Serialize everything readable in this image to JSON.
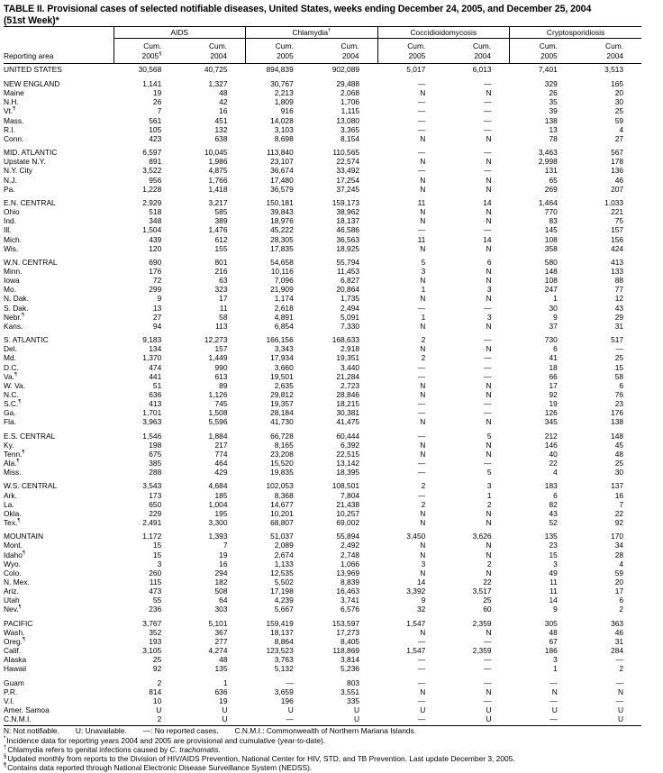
{
  "title": "TABLE II. Provisional cases of selected notifiable diseases, United States, weeks ending December 24, 2005, and December 25, 2004",
  "subtitle": "(51st Week)*",
  "area_header": "Reporting area",
  "diseases": [
    {
      "name": "AIDS",
      "note": ""
    },
    {
      "name": "Chlamydia",
      "note": "†"
    },
    {
      "name": "Coccidioidomycosis",
      "note": ""
    },
    {
      "name": "Cryptosporidiosis",
      "note": ""
    }
  ],
  "subheaders": [
    {
      "line1": "Cum.",
      "line2": "2005",
      "note": "§"
    },
    {
      "line1": "Cum.",
      "line2": "2004",
      "note": ""
    },
    {
      "line1": "Cum.",
      "line2": "2005",
      "note": ""
    },
    {
      "line1": "Cum.",
      "line2": "2004",
      "note": ""
    },
    {
      "line1": "Cum.",
      "line2": "2005",
      "note": ""
    },
    {
      "line1": "Cum.",
      "line2": "2004",
      "note": ""
    },
    {
      "line1": "Cum.",
      "line2": "2005",
      "note": ""
    },
    {
      "line1": "Cum.",
      "line2": "2004",
      "note": ""
    }
  ],
  "groups": [
    [
      [
        "UNITED STATES",
        "",
        "30,568",
        "40,725",
        "894,839",
        "902,089",
        "5,017",
        "6,013",
        "7,401",
        "3,513"
      ]
    ],
    [
      [
        "NEW ENGLAND",
        "",
        "1,141",
        "1,327",
        "30,767",
        "29,488",
        "—",
        "—",
        "329",
        "165"
      ],
      [
        "Maine",
        "",
        "19",
        "48",
        "2,213",
        "2,068",
        "N",
        "N",
        "26",
        "20"
      ],
      [
        "N.H.",
        "",
        "26",
        "42",
        "1,809",
        "1,706",
        "—",
        "—",
        "35",
        "30"
      ],
      [
        "Vt.",
        "¶",
        "7",
        "16",
        "916",
        "1,115",
        "—",
        "—",
        "39",
        "25"
      ],
      [
        "Mass.",
        "",
        "561",
        "451",
        "14,028",
        "13,080",
        "—",
        "—",
        "138",
        "59"
      ],
      [
        "R.I.",
        "",
        "105",
        "132",
        "3,103",
        "3,365",
        "—",
        "—",
        "13",
        "4"
      ],
      [
        "Conn.",
        "",
        "423",
        "638",
        "8,698",
        "8,154",
        "N",
        "N",
        "78",
        "27"
      ]
    ],
    [
      [
        "MID. ATLANTIC",
        "",
        "6,597",
        "10,045",
        "113,840",
        "110,565",
        "—",
        "—",
        "3,463",
        "567"
      ],
      [
        "Upstate N.Y.",
        "",
        "891",
        "1,986",
        "23,107",
        "22,574",
        "N",
        "N",
        "2,998",
        "178"
      ],
      [
        "N.Y. City",
        "",
        "3,522",
        "4,875",
        "36,674",
        "33,492",
        "—",
        "—",
        "131",
        "136"
      ],
      [
        "N.J.",
        "",
        "956",
        "1,766",
        "17,480",
        "17,254",
        "N",
        "N",
        "65",
        "46"
      ],
      [
        "Pa.",
        "",
        "1,228",
        "1,418",
        "36,579",
        "37,245",
        "N",
        "N",
        "269",
        "207"
      ]
    ],
    [
      [
        "E.N. CENTRAL",
        "",
        "2,929",
        "3,217",
        "150,181",
        "159,173",
        "11",
        "14",
        "1,464",
        "1,033"
      ],
      [
        "Ohio",
        "",
        "518",
        "585",
        "39,843",
        "38,962",
        "N",
        "N",
        "770",
        "221"
      ],
      [
        "Ind.",
        "",
        "348",
        "389",
        "18,976",
        "18,137",
        "N",
        "N",
        "83",
        "75"
      ],
      [
        "Ill.",
        "",
        "1,504",
        "1,476",
        "45,222",
        "46,586",
        "—",
        "—",
        "145",
        "157"
      ],
      [
        "Mich.",
        "",
        "439",
        "612",
        "28,305",
        "36,563",
        "11",
        "14",
        "108",
        "156"
      ],
      [
        "Wis.",
        "",
        "120",
        "155",
        "17,835",
        "18,925",
        "N",
        "N",
        "358",
        "424"
      ]
    ],
    [
      [
        "W.N. CENTRAL",
        "",
        "690",
        "801",
        "54,658",
        "55,794",
        "5",
        "6",
        "580",
        "413"
      ],
      [
        "Minn.",
        "",
        "176",
        "216",
        "10,116",
        "11,453",
        "3",
        "N",
        "148",
        "133"
      ],
      [
        "Iowa",
        "",
        "72",
        "63",
        "7,096",
        "6,827",
        "N",
        "N",
        "108",
        "88"
      ],
      [
        "Mo.",
        "",
        "299",
        "323",
        "21,909",
        "20,864",
        "1",
        "3",
        "247",
        "77"
      ],
      [
        "N. Dak.",
        "",
        "9",
        "17",
        "1,174",
        "1,735",
        "N",
        "N",
        "1",
        "12"
      ],
      [
        "S. Dak.",
        "",
        "13",
        "11",
        "2,618",
        "2,494",
        "—",
        "—",
        "30",
        "43"
      ],
      [
        "Nebr.",
        "¶",
        "27",
        "58",
        "4,891",
        "5,091",
        "1",
        "3",
        "9",
        "29"
      ],
      [
        "Kans.",
        "",
        "94",
        "113",
        "6,854",
        "7,330",
        "N",
        "N",
        "37",
        "31"
      ]
    ],
    [
      [
        "S. ATLANTIC",
        "",
        "9,183",
        "12,273",
        "166,156",
        "168,633",
        "2",
        "—",
        "730",
        "517"
      ],
      [
        "Del.",
        "",
        "134",
        "157",
        "3,343",
        "2,918",
        "N",
        "N",
        "6",
        "—"
      ],
      [
        "Md.",
        "",
        "1,370",
        "1,449",
        "17,934",
        "19,351",
        "2",
        "—",
        "41",
        "25"
      ],
      [
        "D.C.",
        "",
        "474",
        "990",
        "3,660",
        "3,440",
        "—",
        "—",
        "18",
        "15"
      ],
      [
        "Va.",
        "¶",
        "441",
        "613",
        "19,501",
        "21,284",
        "—",
        "—",
        "66",
        "58"
      ],
      [
        "W. Va.",
        "",
        "51",
        "89",
        "2,635",
        "2,723",
        "N",
        "N",
        "17",
        "6"
      ],
      [
        "N.C.",
        "",
        "636",
        "1,126",
        "29,812",
        "28,846",
        "N",
        "N",
        "92",
        "76"
      ],
      [
        "S.C.",
        "¶",
        "413",
        "745",
        "19,357",
        "18,215",
        "—",
        "—",
        "19",
        "23"
      ],
      [
        "Ga.",
        "",
        "1,701",
        "1,508",
        "28,184",
        "30,381",
        "—",
        "—",
        "126",
        "176"
      ],
      [
        "Fla.",
        "",
        "3,963",
        "5,596",
        "41,730",
        "41,475",
        "N",
        "N",
        "345",
        "138"
      ]
    ],
    [
      [
        "E.S. CENTRAL",
        "",
        "1,546",
        "1,884",
        "66,728",
        "60,444",
        "—",
        "5",
        "212",
        "148"
      ],
      [
        "Ky.",
        "",
        "198",
        "217",
        "8,165",
        "6,392",
        "N",
        "N",
        "146",
        "45"
      ],
      [
        "Tenn.",
        "¶",
        "675",
        "774",
        "23,208",
        "22,515",
        "N",
        "N",
        "40",
        "48"
      ],
      [
        "Ala.",
        "¶",
        "385",
        "464",
        "15,520",
        "13,142",
        "—",
        "—",
        "22",
        "25"
      ],
      [
        "Miss.",
        "",
        "288",
        "429",
        "19,835",
        "18,395",
        "—",
        "5",
        "4",
        "30"
      ]
    ],
    [
      [
        "W.S. CENTRAL",
        "",
        "3,543",
        "4,684",
        "102,053",
        "108,501",
        "2",
        "3",
        "183",
        "137"
      ],
      [
        "Ark.",
        "",
        "173",
        "185",
        "8,368",
        "7,804",
        "—",
        "1",
        "6",
        "16"
      ],
      [
        "La.",
        "",
        "650",
        "1,004",
        "14,677",
        "21,438",
        "2",
        "2",
        "82",
        "7"
      ],
      [
        "Okla.",
        "",
        "229",
        "195",
        "10,201",
        "10,257",
        "N",
        "N",
        "43",
        "22"
      ],
      [
        "Tex.",
        "¶",
        "2,491",
        "3,300",
        "68,807",
        "69,002",
        "N",
        "N",
        "52",
        "92"
      ]
    ],
    [
      [
        "MOUNTAIN",
        "",
        "1,172",
        "1,393",
        "51,037",
        "55,894",
        "3,450",
        "3,626",
        "135",
        "170"
      ],
      [
        "Mont.",
        "",
        "15",
        "7",
        "2,089",
        "2,492",
        "N",
        "N",
        "23",
        "34"
      ],
      [
        "Idaho",
        "¶",
        "15",
        "19",
        "2,674",
        "2,748",
        "N",
        "N",
        "15",
        "28"
      ],
      [
        "Wyo.",
        "",
        "3",
        "16",
        "1,133",
        "1,066",
        "3",
        "2",
        "3",
        "4"
      ],
      [
        "Colo.",
        "",
        "260",
        "294",
        "12,535",
        "13,969",
        "N",
        "N",
        "49",
        "59"
      ],
      [
        "N. Mex.",
        "",
        "115",
        "182",
        "5,502",
        "8,839",
        "14",
        "22",
        "11",
        "20"
      ],
      [
        "Ariz.",
        "",
        "473",
        "508",
        "17,198",
        "16,463",
        "3,392",
        "3,517",
        "11",
        "17"
      ],
      [
        "Utah",
        "",
        "55",
        "64",
        "4,239",
        "3,741",
        "9",
        "25",
        "14",
        "6"
      ],
      [
        "Nev.",
        "¶",
        "236",
        "303",
        "5,667",
        "6,576",
        "32",
        "60",
        "9",
        "2"
      ]
    ],
    [
      [
        "PACIFIC",
        "",
        "3,767",
        "5,101",
        "159,419",
        "153,597",
        "1,547",
        "2,359",
        "305",
        "363"
      ],
      [
        "Wash.",
        "",
        "352",
        "367",
        "18,137",
        "17,273",
        "N",
        "N",
        "48",
        "46"
      ],
      [
        "Oreg.",
        "¶",
        "193",
        "277",
        "8,864",
        "8,405",
        "—",
        "—",
        "67",
        "31"
      ],
      [
        "Calif.",
        "",
        "3,105",
        "4,274",
        "123,523",
        "118,869",
        "1,547",
        "2,359",
        "186",
        "284"
      ],
      [
        "Alaska",
        "",
        "25",
        "48",
        "3,763",
        "3,814",
        "—",
        "—",
        "3",
        "—"
      ],
      [
        "Hawaii",
        "",
        "92",
        "135",
        "5,132",
        "5,236",
        "—",
        "—",
        "1",
        "2"
      ]
    ],
    [
      [
        "Guam",
        "",
        "2",
        "1",
        "—",
        "803",
        "—",
        "—",
        "—",
        "—"
      ],
      [
        "P.R.",
        "",
        "814",
        "636",
        "3,659",
        "3,551",
        "N",
        "N",
        "N",
        "N"
      ],
      [
        "V.I.",
        "",
        "10",
        "19",
        "196",
        "335",
        "—",
        "—",
        "—",
        "—"
      ],
      [
        "Amer. Samoa",
        "",
        "U",
        "U",
        "U",
        "U",
        "U",
        "U",
        "U",
        "U"
      ],
      [
        "C.N.M.I.",
        "",
        "2",
        "U",
        "—",
        "U",
        "—",
        "U",
        "—",
        "U"
      ]
    ]
  ],
  "legend": [
    "N: Not notifiable.",
    "U: Unavailable.",
    "—: No reported cases.",
    "C.N.M.I.: Commonwealth of Northern Mariana Islands."
  ],
  "footnotes": [
    {
      "mark": "*",
      "text": "Incidence data for reporting years 2004 and 2005 are provisional and cumulative (year-to-date)."
    },
    {
      "mark": "†",
      "text": "Chlamydia refers to genital infections caused by ",
      "italic": "C. trachomatis",
      "after": "."
    },
    {
      "mark": "§",
      "text": "Updated monthly from reports to the Division of HIV/AIDS Prevention, National Center for HIV, STD, and TB Prevention. Last update December 3, 2005."
    },
    {
      "mark": "¶",
      "text": "Contains data reported through National Electronic Disease Surveillance System (NEDSS)."
    }
  ]
}
